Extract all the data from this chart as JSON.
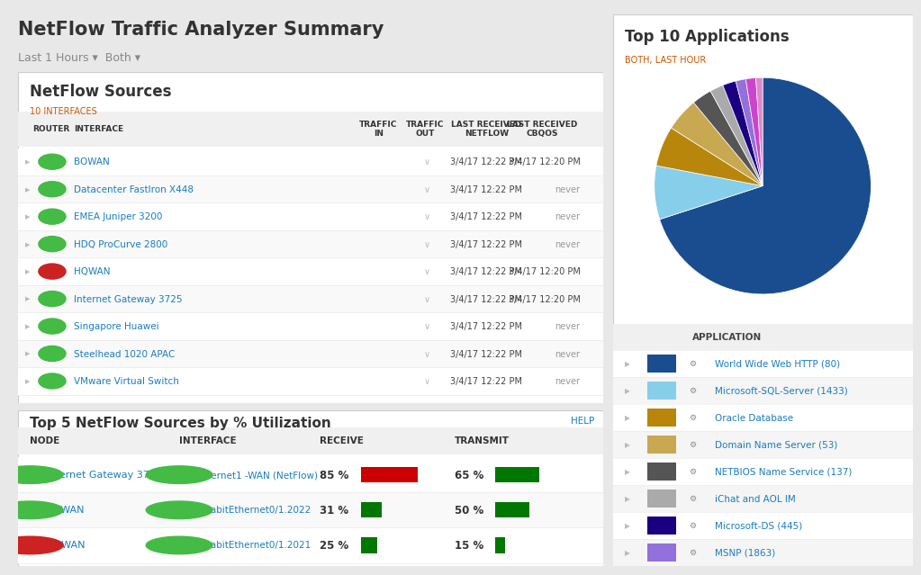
{
  "title": "NetFlow Traffic Analyzer Summary",
  "subtitle": "Last 1 Hours ▾  Both ▾",
  "bg_color": "#e8e8e8",
  "panel_bg": "#ffffff",
  "netflow_sources_title": "NetFlow Sources",
  "netflow_sources_sub": "10 INTERFACES",
  "table_rows": [
    [
      "green",
      "BOWAN",
      "3/4/17 12:22 PM",
      "3/4/17 12:20 PM"
    ],
    [
      "green",
      "Datacenter FastIron X448",
      "3/4/17 12:22 PM",
      "never"
    ],
    [
      "green",
      "EMEA Juniper 3200",
      "3/4/17 12:22 PM",
      "never"
    ],
    [
      "green",
      "HDQ ProCurve 2800",
      "3/4/17 12:22 PM",
      "never"
    ],
    [
      "red",
      "HQWAN",
      "3/4/17 12:22 PM",
      "3/4/17 12:20 PM"
    ],
    [
      "green",
      "Internet Gateway 3725",
      "3/4/17 12:22 PM",
      "3/4/17 12:20 PM"
    ],
    [
      "green",
      "Singapore Huawei",
      "3/4/17 12:22 PM",
      "never"
    ],
    [
      "green",
      "Steelhead 1020 APAC",
      "3/4/17 12:22 PM",
      "never"
    ],
    [
      "green",
      "VMware Virtual Switch",
      "3/4/17 12:22 PM",
      "never"
    ]
  ],
  "top5_title": "Top 5 NetFlow Sources by % Utilization",
  "top5_rows": [
    {
      "node": "Internet Gateway 3725",
      "node_color": "green",
      "interface": "Ethernet1 -WAN (NetFlow)",
      "if_color": "green",
      "recv_pct": 85,
      "recv_bar_color": "#cc0000",
      "recv_text": "85 %",
      "xmit_pct": 65,
      "xmit_bar_color": "#007700",
      "xmit_text": "65 %"
    },
    {
      "node": "BOWAN",
      "node_color": "green",
      "interface": "GigabitEthernet0/1.2022",
      "if_color": "green",
      "recv_pct": 31,
      "recv_bar_color": "#007700",
      "recv_text": "31 %",
      "xmit_pct": 50,
      "xmit_bar_color": "#007700",
      "xmit_text": "50 %"
    },
    {
      "node": "HQWAN",
      "node_color": "red",
      "interface": "GigabitEthernet0/1.2021",
      "if_color": "green",
      "recv_pct": 25,
      "recv_bar_color": "#007700",
      "recv_text": "25 %",
      "xmit_pct": 15,
      "xmit_bar_color": "#007700",
      "xmit_text": "15 %"
    }
  ],
  "top10_title": "Top 10 Applications",
  "top10_sub": "BOTH, LAST HOUR",
  "pie_values": [
    70,
    8,
    6,
    5,
    3,
    2,
    2,
    1.5,
    1.5,
    1
  ],
  "pie_colors": [
    "#1a4d8f",
    "#87ceeb",
    "#b8860b",
    "#c8a850",
    "#555555",
    "#aaaaaa",
    "#1a0080",
    "#9370db",
    "#cc44cc",
    "#dd88cc"
  ],
  "app_legend": [
    {
      "color": "#1a4d8f",
      "label": "World Wide Web HTTP (80)"
    },
    {
      "color": "#87ceeb",
      "label": "Microsoft-SQL-Server (1433)"
    },
    {
      "color": "#b8860b",
      "label": "Oracle Database"
    },
    {
      "color": "#c8a850",
      "label": "Domain Name Server (53)"
    },
    {
      "color": "#555555",
      "label": "NETBIOS Name Service (137)"
    },
    {
      "color": "#aaaaaa",
      "label": "iChat and AOL IM"
    },
    {
      "color": "#1a0080",
      "label": "Microsoft-DS (445)"
    },
    {
      "color": "#9370db",
      "label": "MSNP (1863)"
    }
  ],
  "link_color": "#1a7cbf",
  "title_color": "#333333",
  "orange_color": "#cc5500"
}
